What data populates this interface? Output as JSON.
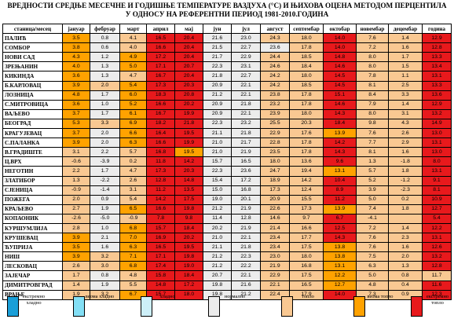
{
  "title": {
    "line1": "ВРЕДНОСТИ СРЕДЊЕ МЕСЕЧНЕ И ГОДИШЊЕ ТЕМПЕРАТУРЕ ВАЗДУХА (°C) И ЊИХОВА ОЦЕНА МЕТОДОМ ПЕРЦЕНТИЛА",
    "line2": "У ОДНОСУ НА РЕФЕРЕНТНИ ПЕРИОД 1981-2010.ГОДИНА"
  },
  "colors": {
    "extremely_cold": "#1a9fd8",
    "very_cold": "#83dff5",
    "cold": "#cdeff8",
    "normal": "#ececec",
    "warm": "#f9c892",
    "very_warm": "#ffa200",
    "extremely_warm": "#e8191c"
  },
  "table": {
    "headers": [
      "станица/месец",
      "јануар",
      "фебруар",
      "март",
      "април",
      "мај",
      "јун",
      "јул",
      "август",
      "септембар",
      "октобар",
      "новембар",
      "децембар",
      "година"
    ],
    "rows": [
      {
        "station": "ПАЛИЋ",
        "values": [
          "3.5",
          "0.8",
          "4.1",
          "16.5",
          "20.4",
          "21.6",
          "23.0",
          "24.3",
          "18.0",
          "14.0",
          "7.6",
          "1.4",
          "12.9"
        ],
        "classes": [
          "vw",
          "n",
          "w",
          "ew",
          "ew",
          "n",
          "n",
          "w",
          "w",
          "ew",
          "w",
          "w",
          "ew"
        ]
      },
      {
        "station": "СОМБОР",
        "values": [
          "3.8",
          "0.6",
          "4.0",
          "16.6",
          "20.4",
          "21.5",
          "22.7",
          "23.6",
          "17.8",
          "14.0",
          "7.2",
          "1.6",
          "12.8"
        ],
        "classes": [
          "vw",
          "n",
          "w",
          "ew",
          "ew",
          "n",
          "n",
          "n",
          "w",
          "ew",
          "w",
          "w",
          "ew"
        ]
      },
      {
        "station": "НОВИ САД",
        "values": [
          "4.3",
          "1.2",
          "4.9",
          "17.2",
          "20.4",
          "21.7",
          "22.9",
          "24.4",
          "18.5",
          "14.8",
          "8.0",
          "1.7",
          "13.3"
        ],
        "classes": [
          "vw",
          "n",
          "vw",
          "ew",
          "ew",
          "n",
          "n",
          "w",
          "w",
          "ew",
          "w",
          "w",
          "ew"
        ]
      },
      {
        "station": "ЗРЕЊАНИН",
        "values": [
          "4.0",
          "1.3",
          "5.0",
          "17.1",
          "20.7",
          "22.3",
          "23.1",
          "24.6",
          "18.4",
          "14.6",
          "8.0",
          "1.5",
          "13.4"
        ],
        "classes": [
          "vw",
          "n",
          "vw",
          "ew",
          "ew",
          "n",
          "n",
          "w",
          "w",
          "ew",
          "w",
          "w",
          "ew"
        ]
      },
      {
        "station": "КИКИНДА",
        "values": [
          "3.6",
          "1.3",
          "4.7",
          "16.7",
          "20.4",
          "21.8",
          "22.7",
          "24.2",
          "18.0",
          "14.5",
          "7.8",
          "1.1",
          "13.1"
        ],
        "classes": [
          "vw",
          "n",
          "w",
          "ew",
          "ew",
          "n",
          "n",
          "w",
          "w",
          "ew",
          "w",
          "w",
          "ew"
        ]
      },
      {
        "station": "Б.КАРЛОВАЦ",
        "values": [
          "3.9",
          "2.0",
          "5.4",
          "17.3",
          "20.3",
          "20.9",
          "22.1",
          "24.2",
          "18.5",
          "14.5",
          "8.1",
          "2.5",
          "13.3"
        ],
        "classes": [
          "vw",
          "w",
          "vw",
          "ew",
          "ew",
          "n",
          "n",
          "w",
          "w",
          "ew",
          "w",
          "w",
          "ew"
        ]
      },
      {
        "station": "ЛОЗНИЦА",
        "values": [
          "4.8",
          "1.7",
          "6.0",
          "18.3",
          "20.8",
          "21.2",
          "22.1",
          "23.8",
          "17.8",
          "15.1",
          "8.4",
          "3.3",
          "13.6"
        ],
        "classes": [
          "vw",
          "n",
          "vw",
          "ew",
          "ew",
          "n",
          "n",
          "w",
          "w",
          "ew",
          "w",
          "w",
          "ew"
        ]
      },
      {
        "station": "С.МИТРОВИЦА",
        "values": [
          "3.6",
          "1.0",
          "5.2",
          "16.6",
          "20.2",
          "20.9",
          "21.8",
          "23.2",
          "17.8",
          "14.6",
          "7.9",
          "1.4",
          "12.9"
        ],
        "classes": [
          "vw",
          "n",
          "vw",
          "ew",
          "ew",
          "n",
          "n",
          "w",
          "w",
          "ew",
          "w",
          "w",
          "ew"
        ]
      },
      {
        "station": "ВАЉЕВО",
        "values": [
          "3.7",
          "1.7",
          "6.1",
          "16.7",
          "19.9",
          "20.9",
          "22.1",
          "23.9",
          "18.0",
          "14.3",
          "8.0",
          "3.1",
          "13.2"
        ],
        "classes": [
          "vw",
          "n",
          "vw",
          "ew",
          "ew",
          "n",
          "n",
          "w",
          "w",
          "ew",
          "w",
          "w",
          "ew"
        ]
      },
      {
        "station": "БЕОГРАД",
        "values": [
          "5.3",
          "3.3",
          "6.9",
          "18.2",
          "21.8",
          "22.3",
          "23.2",
          "25.5",
          "20.3",
          "18.4",
          "9.8",
          "4.3",
          "14.9"
        ],
        "classes": [
          "vw",
          "w",
          "vw",
          "ew",
          "ew",
          "n",
          "n",
          "w",
          "w",
          "ew",
          "w",
          "w",
          "ew"
        ]
      },
      {
        "station": "КРАГУЈЕВАЦ",
        "values": [
          "3.7",
          "2.0",
          "6.6",
          "16.4",
          "19.5",
          "21.1",
          "21.8",
          "22.9",
          "17.6",
          "13.9",
          "7.6",
          "2.6",
          "13.0"
        ],
        "classes": [
          "vw",
          "n",
          "vw",
          "ew",
          "ew",
          "n",
          "n",
          "w",
          "w",
          "vw",
          "w",
          "w",
          "ew"
        ]
      },
      {
        "station": "С.ПАЛАНКА",
        "values": [
          "3.9",
          "2.0",
          "6.3",
          "16.6",
          "19.9",
          "21.0",
          "21.7",
          "22.8",
          "17.8",
          "14.2",
          "7.7",
          "2.9",
          "13.1"
        ],
        "classes": [
          "vw",
          "n",
          "vw",
          "ew",
          "ew",
          "n",
          "n",
          "w",
          "w",
          "ew",
          "w",
          "w",
          "ew"
        ]
      },
      {
        "station": "В.ГРАДИШТЕ",
        "values": [
          "3.1",
          "2.2",
          "5.7",
          "16.8",
          "19.5",
          "21.0",
          "21.9",
          "23.5",
          "17.8",
          "14.3",
          "8.1",
          "1.6",
          "13.0"
        ],
        "classes": [
          "w",
          "n",
          "w",
          "ew",
          "vw",
          "n",
          "n",
          "w",
          "w",
          "ew",
          "w",
          "w",
          "ew"
        ]
      },
      {
        "station": "Ц.ВРХ",
        "values": [
          "-0.6",
          "-3.9",
          "0.2",
          "11.8",
          "14.2",
          "15.7",
          "16.5",
          "18.0",
          "13.6",
          "9.6",
          "1.3",
          "-1.8",
          "8.0"
        ],
        "classes": [
          "w",
          "n",
          "w",
          "ew",
          "ew",
          "n",
          "n",
          "w",
          "w",
          "ew",
          "w",
          "w",
          "ew"
        ]
      },
      {
        "station": "НЕГОТИН",
        "values": [
          "2.2",
          "1.7",
          "4.7",
          "17.3",
          "20.3",
          "22.3",
          "23.6",
          "24.7",
          "19.4",
          "13.1",
          "5.7",
          "1.8",
          "13.1"
        ],
        "classes": [
          "w",
          "n",
          "w",
          "ew",
          "ew",
          "n",
          "n",
          "w",
          "w",
          "vw",
          "w",
          "w",
          "ew"
        ]
      },
      {
        "station": "ЗЛАТИБОР",
        "values": [
          "1.3",
          "-2.2",
          "2.6",
          "12.8",
          "14.8",
          "15.4",
          "17.2",
          "18.9",
          "14.2",
          "10.4",
          "5.2",
          "-1.2",
          "9.1"
        ],
        "classes": [
          "w",
          "n",
          "w",
          "ew",
          "ew",
          "n",
          "n",
          "w",
          "w",
          "ew",
          "w",
          "w",
          "ew"
        ]
      },
      {
        "station": "СЈЕНИЦА",
        "values": [
          "-0.9",
          "-1.4",
          "3.1",
          "11.2",
          "13.5",
          "15.0",
          "16.8",
          "17.3",
          "12.4",
          "8.9",
          "3.9",
          "-2.3",
          "8.1"
        ],
        "classes": [
          "w",
          "n",
          "w",
          "ew",
          "ew",
          "n",
          "n",
          "w",
          "w",
          "ew",
          "w",
          "w",
          "ew"
        ]
      },
      {
        "station": "ПОЖЕГА",
        "values": [
          "2.0",
          "0.9",
          "5.4",
          "14.2",
          "17.5",
          "19.0",
          "20.1",
          "20.9",
          "15.5",
          "11.2",
          "5.0",
          "0.2",
          "10.9"
        ],
        "classes": [
          "w",
          "n",
          "w",
          "ew",
          "ew",
          "n",
          "n",
          "w",
          "w",
          "ew",
          "w",
          "w",
          "ew"
        ]
      },
      {
        "station": "КРАЉЕВО",
        "values": [
          "2.7",
          "1.9",
          "6.5",
          "16.6",
          "19.8",
          "21.2",
          "21.9",
          "22.6",
          "17.3",
          "13.9",
          "7.4",
          "1.8",
          "12.7"
        ],
        "classes": [
          "w",
          "n",
          "vw",
          "ew",
          "ew",
          "n",
          "n",
          "w",
          "w",
          "vw",
          "w",
          "w",
          "ew"
        ]
      },
      {
        "station": "КОПАОНИК",
        "values": [
          "-2.6",
          "-5.0",
          "-0.9",
          "7.8",
          "9.8",
          "11.4",
          "12.8",
          "14.6",
          "9.7",
          "6.7",
          "-4.1",
          "",
          "5.4"
        ],
        "classes": [
          "w",
          "n",
          "w",
          "ew",
          "ew",
          "n",
          "n",
          "w",
          "w",
          "ew",
          "w",
          "w",
          "ew"
        ]
      },
      {
        "station": "КУРШУМЛИЈА",
        "values": [
          "2.8",
          "1.0",
          "6.8",
          "15.7",
          "18.4",
          "20.2",
          "21.9",
          "21.4",
          "16.6",
          "12.5",
          "7.2",
          "1.4",
          "12.2"
        ],
        "classes": [
          "w",
          "n",
          "vw",
          "ew",
          "ew",
          "n",
          "n",
          "w",
          "w",
          "ew",
          "w",
          "w",
          "ew"
        ]
      },
      {
        "station": "КРУШЕВАЦ",
        "values": [
          "3.9",
          "2.1",
          "7.0",
          "16.9",
          "20.2",
          "21.0",
          "22.1",
          "23.4",
          "17.7",
          "14.3",
          "7.6",
          "2.3",
          "13.1"
        ],
        "classes": [
          "vw",
          "n",
          "vw",
          "ew",
          "ew",
          "n",
          "n",
          "w",
          "w",
          "ew",
          "w",
          "w",
          "ew"
        ]
      },
      {
        "station": "ЋУПРИЈА",
        "values": [
          "3.5",
          "1.6",
          "6.3",
          "16.5",
          "19.5",
          "21.1",
          "21.8",
          "23.4",
          "17.5",
          "13.8",
          "7.6",
          "1.6",
          "12.6"
        ],
        "classes": [
          "vw",
          "n",
          "vw",
          "ew",
          "ew",
          "n",
          "n",
          "w",
          "w",
          "vw",
          "w",
          "w",
          "ew"
        ]
      },
      {
        "station": "НИШ",
        "values": [
          "3.9",
          "3.2",
          "7.1",
          "17.1",
          "19.8",
          "21.2",
          "22.3",
          "23.0",
          "18.0",
          "13.8",
          "7.5",
          "2.0",
          "13.2"
        ],
        "classes": [
          "vw",
          "w",
          "vw",
          "ew",
          "ew",
          "n",
          "n",
          "w",
          "w",
          "vw",
          "w",
          "w",
          "ew"
        ]
      },
      {
        "station": "ЛЕСКОВАЦ",
        "values": [
          "2.6",
          "3.0",
          "6.8",
          "17.4",
          "19.0",
          "21.2",
          "22.2",
          "21.9",
          "16.8",
          "13.1",
          "6.3",
          "1.3",
          "12.8"
        ],
        "classes": [
          "w",
          "w",
          "vw",
          "ew",
          "ew",
          "n",
          "n",
          "w",
          "w",
          "vw",
          "w",
          "w",
          "ew"
        ]
      },
      {
        "station": "ЗАЈЕЧАР",
        "values": [
          "1.7",
          "0.8",
          "4.8",
          "15.8",
          "18.4",
          "20.7",
          "22.1",
          "22.9",
          "17.5",
          "12.2",
          "5.0",
          "0.8",
          "11.7"
        ],
        "classes": [
          "w",
          "n",
          "w",
          "ew",
          "ew",
          "n",
          "n",
          "w",
          "w",
          "vw",
          "w",
          "w",
          "w"
        ]
      },
      {
        "station": "ДИМИТРОВГРАД",
        "values": [
          "1.4",
          "1.9",
          "5.5",
          "14.8",
          "17.2",
          "19.8",
          "21.6",
          "22.1",
          "16.5",
          "12.7",
          "4.8",
          "0.4",
          "11.6"
        ],
        "classes": [
          "w",
          "n",
          "w",
          "ew",
          "ew",
          "n",
          "n",
          "w",
          "w",
          "vw",
          "w",
          "w",
          "ew"
        ]
      },
      {
        "station": "ВРАЊЕ",
        "values": [
          "1.9",
          "3.2",
          "6.7",
          "15.7",
          "18.0",
          "19.8",
          "21.2",
          "22.4",
          "17.9",
          "14.0",
          "7.3",
          "0.9",
          "12.3"
        ],
        "classes": [
          "w",
          "w",
          "vw",
          "ew",
          "ew",
          "n",
          "n",
          "w",
          "w",
          "ew",
          "w",
          "w",
          "ew"
        ]
      }
    ]
  },
  "legend": [
    {
      "key": "ec",
      "label": "екстремно хладно"
    },
    {
      "key": "vc",
      "label": "веома хладно"
    },
    {
      "key": "c",
      "label": "хладно"
    },
    {
      "key": "n",
      "label": "нормално"
    },
    {
      "key": "w",
      "label": "топло"
    },
    {
      "key": "vw",
      "label": "веома топло"
    },
    {
      "key": "ew",
      "label": "екстремно топло"
    }
  ]
}
